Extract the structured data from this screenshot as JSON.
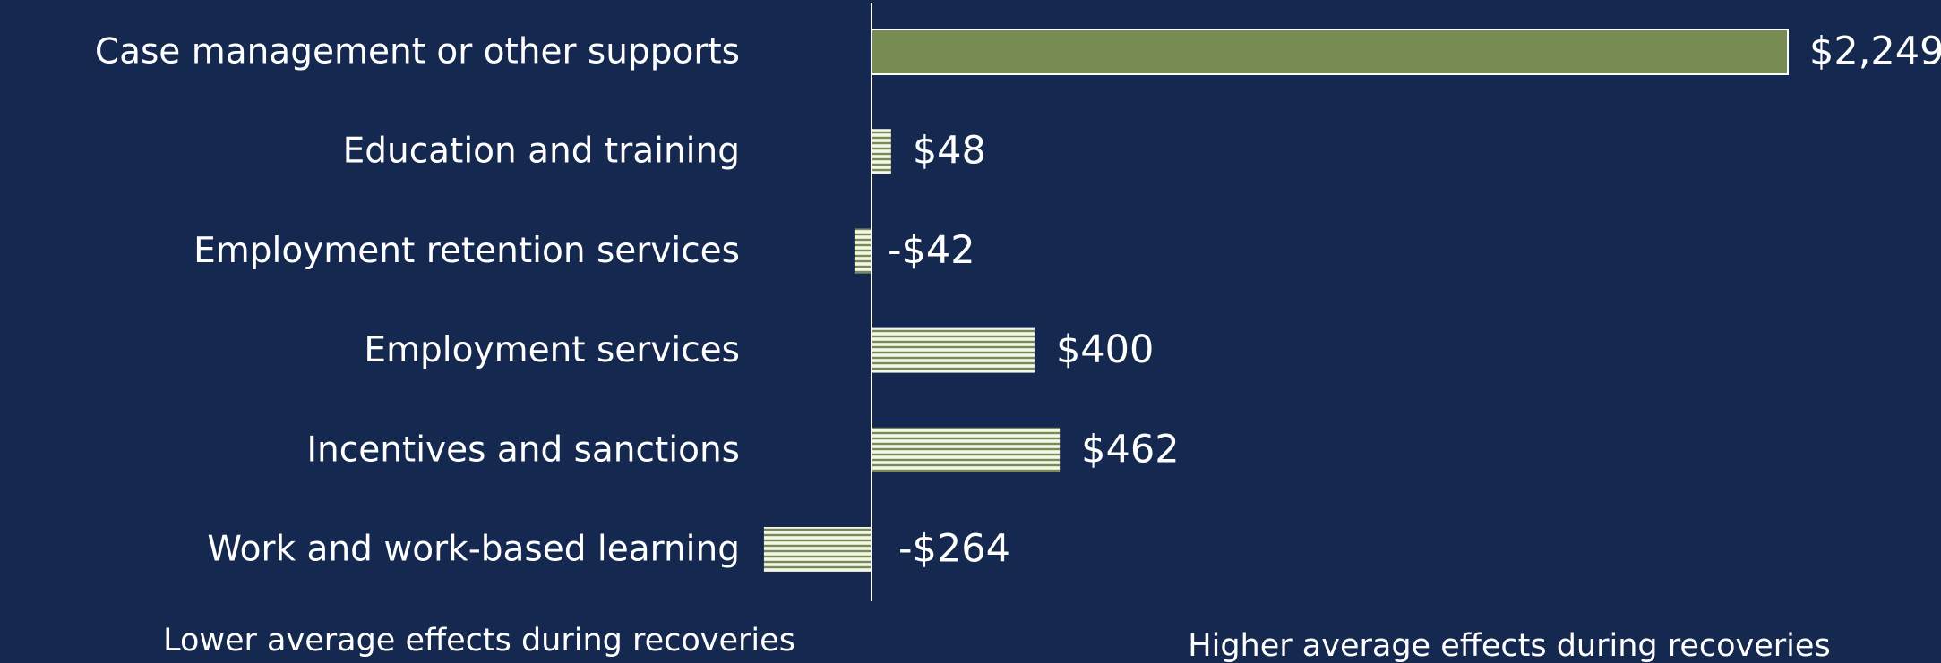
{
  "chart_data": {
    "type": "hbar",
    "categories": [
      "Case management or other supports",
      "Education and training",
      "Employment retention services",
      "Employment services",
      "Incentives and sanctions",
      "Work and work-based learning"
    ],
    "values": [
      2249,
      48,
      -42,
      400,
      462,
      -264
    ],
    "value_labels": [
      "$2,249",
      "$48",
      "-$42",
      "$400",
      "$462",
      "-$264"
    ],
    "colors": [
      "#778c52",
      "#778c52",
      "#778c52",
      "#778c52",
      "#778c52",
      "#778c52"
    ],
    "hatched": [
      false,
      true,
      true,
      true,
      true,
      true
    ],
    "annotations": [
      "Lower average effects during recoveries",
      "Higher average effects during recoveries"
    ]
  }
}
